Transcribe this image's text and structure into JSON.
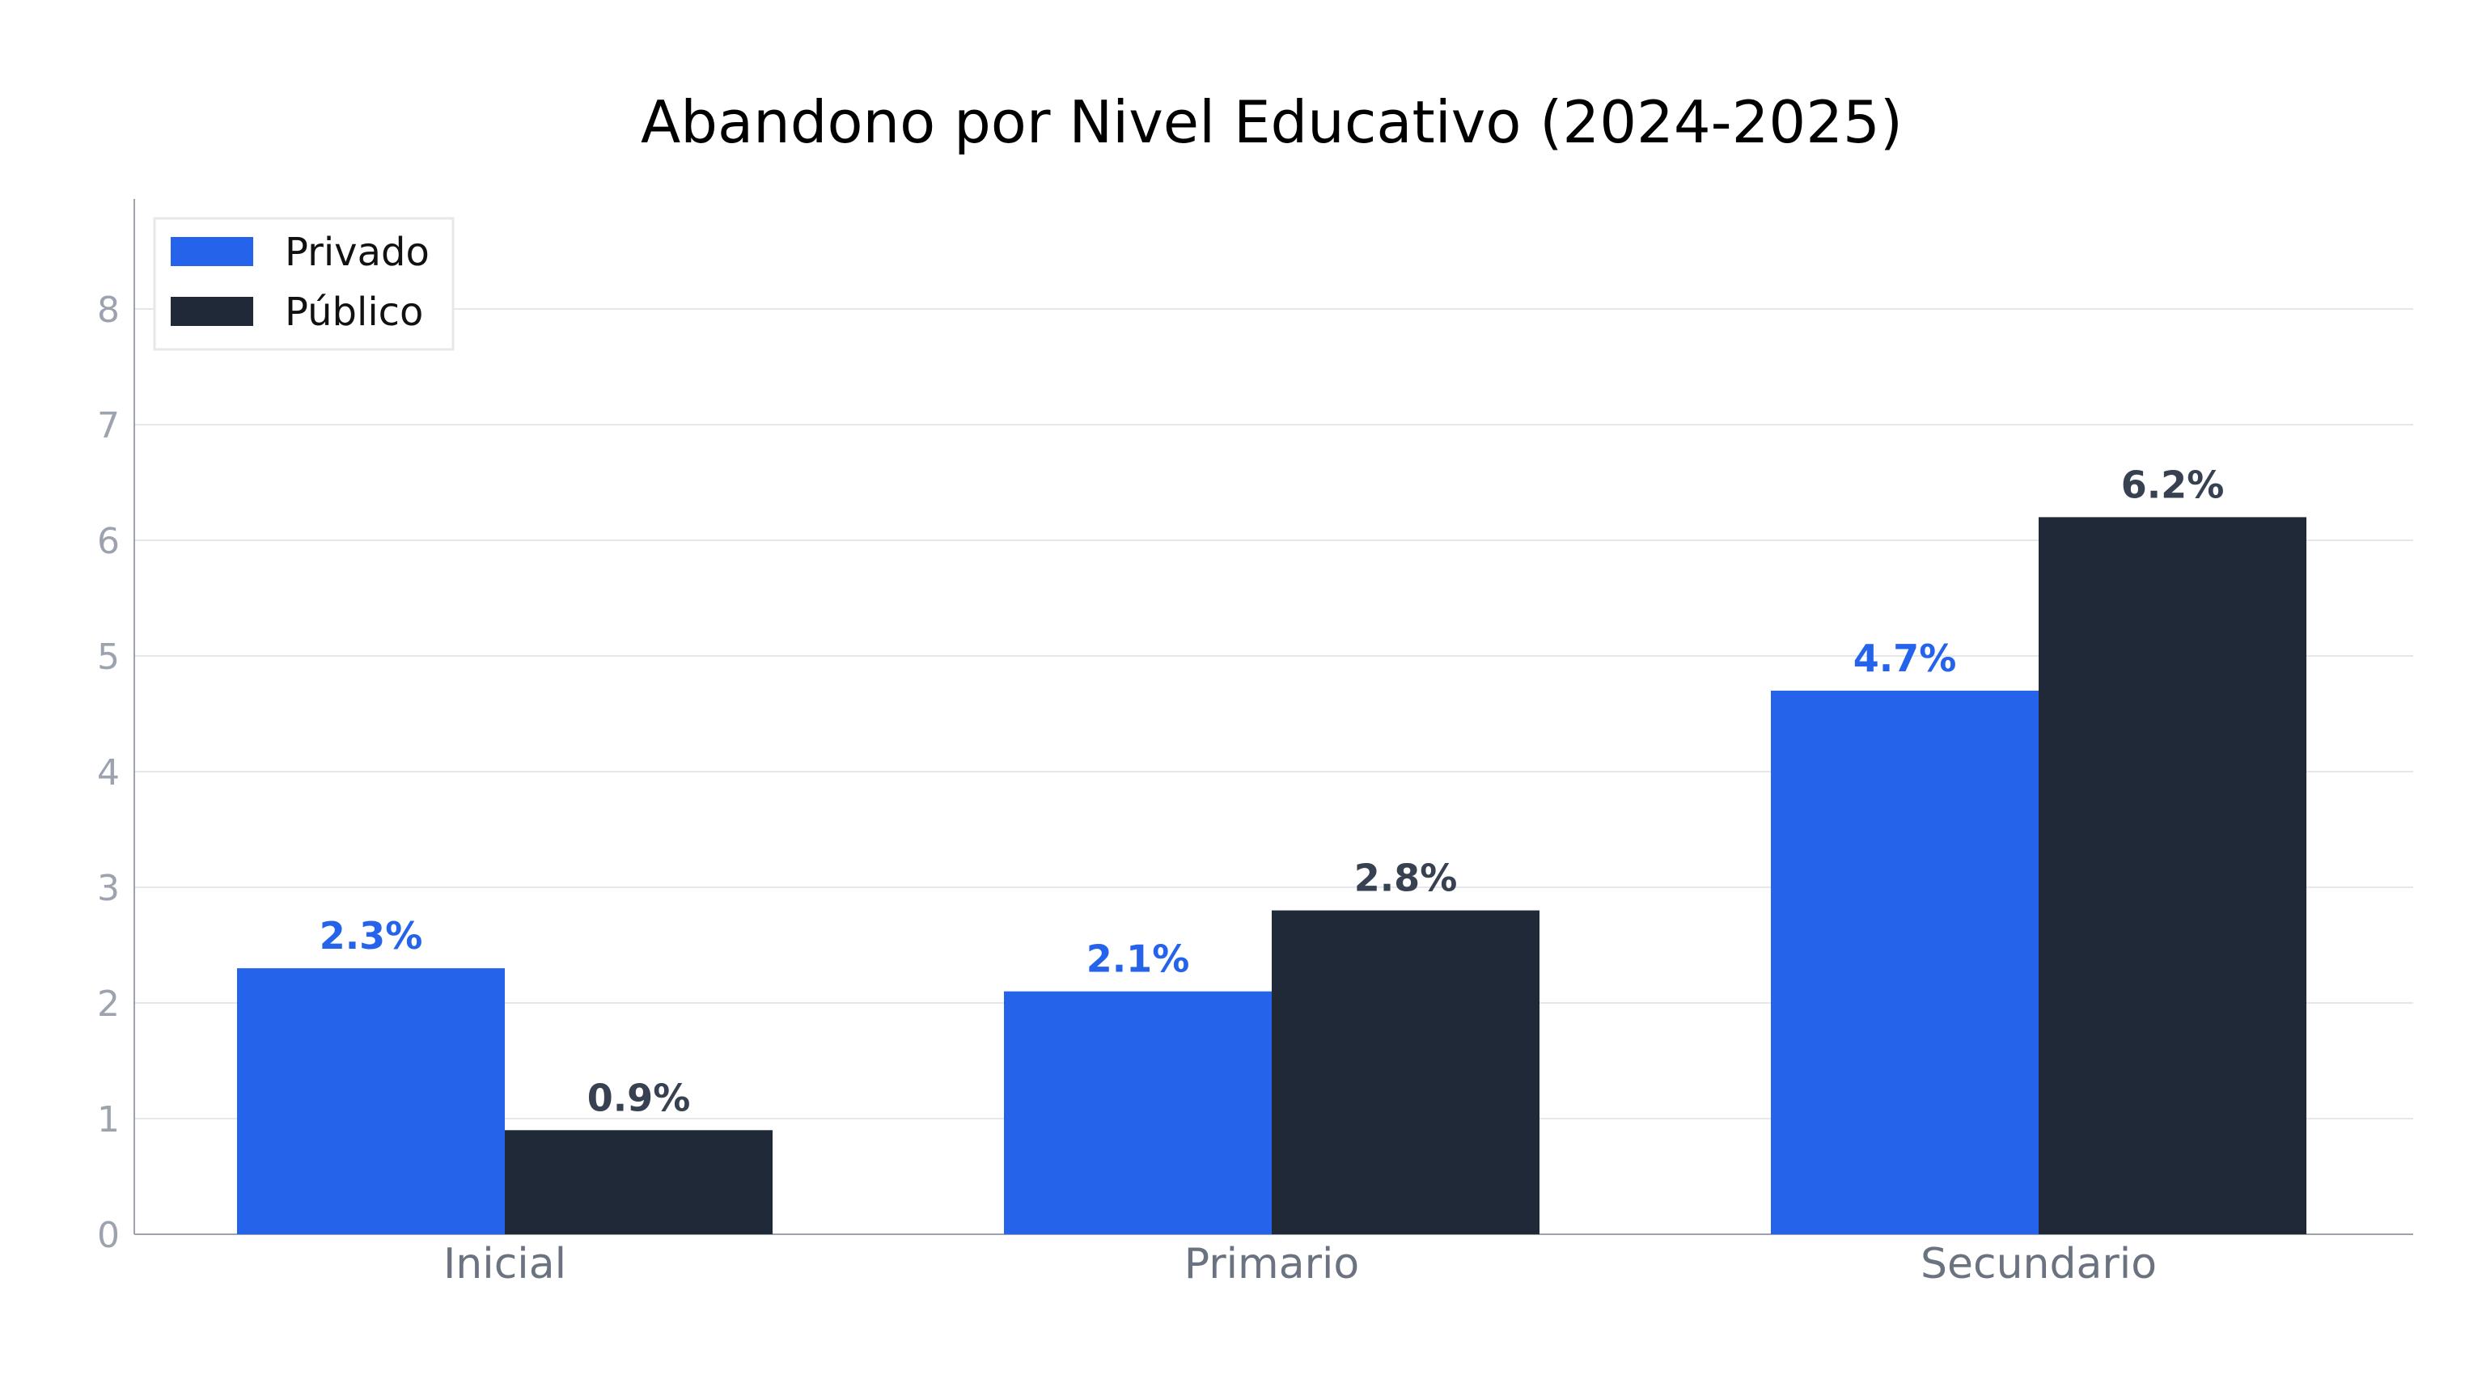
{
  "chart_data": {
    "type": "bar",
    "title": "Abandono por Nivel Educativo (2024-2025)",
    "xlabel": "",
    "ylabel": "",
    "categories": [
      "Inicial",
      "Primario",
      "Secundario"
    ],
    "series": [
      {
        "name": "Privado",
        "values": [
          2.3,
          2.1,
          4.7
        ],
        "color": "#2563eb",
        "label_color": "#2563eb"
      },
      {
        "name": "Público",
        "values": [
          0.9,
          2.8,
          6.2
        ],
        "color": "#1f2937",
        "label_color": "#374151"
      }
    ],
    "data_labels": [
      [
        "2.3%",
        "2.1%",
        "4.7%"
      ],
      [
        "0.9%",
        "2.8%",
        "6.2%"
      ]
    ],
    "ylim": [
      0,
      8.95
    ],
    "yticks": [
      "0",
      "1",
      "2",
      "3",
      "4",
      "5",
      "6",
      "7",
      "8"
    ],
    "grid": "horizontal",
    "legend_position": "top-left"
  }
}
